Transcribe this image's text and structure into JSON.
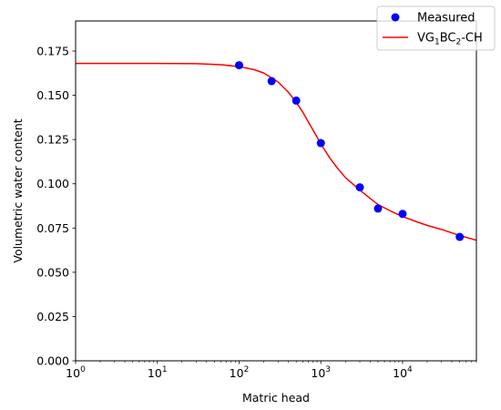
{
  "chart_data": {
    "type": "scatter",
    "xlabel": "Matric head",
    "ylabel": "Volumetric water content",
    "xscale": "log",
    "xlim": [
      1,
      80000
    ],
    "ylim": [
      0,
      0.192
    ],
    "grid": false,
    "legend_placement": "top-right",
    "x_ticks": [
      {
        "value": 1,
        "base": "10",
        "exp": "0"
      },
      {
        "value": 10,
        "base": "10",
        "exp": "1"
      },
      {
        "value": 100,
        "base": "10",
        "exp": "2"
      },
      {
        "value": 1000,
        "base": "10",
        "exp": "3"
      },
      {
        "value": 10000,
        "base": "10",
        "exp": "4"
      }
    ],
    "y_ticks": [
      {
        "value": 0.0,
        "label": "0.000"
      },
      {
        "value": 0.025,
        "label": "0.025"
      },
      {
        "value": 0.05,
        "label": "0.050"
      },
      {
        "value": 0.075,
        "label": "0.075"
      },
      {
        "value": 0.1,
        "label": "0.100"
      },
      {
        "value": 0.125,
        "label": "0.125"
      },
      {
        "value": 0.15,
        "label": "0.150"
      },
      {
        "value": 0.175,
        "label": "0.175"
      }
    ],
    "series": [
      {
        "name": "Measured",
        "kind": "scatter",
        "color": "#0000ff",
        "x": [
          100,
          250,
          500,
          1000,
          3000,
          5000,
          10000,
          50000
        ],
        "y": [
          0.167,
          0.158,
          0.147,
          0.123,
          0.098,
          0.086,
          0.083,
          0.07
        ]
      },
      {
        "name_parts": [
          "VG",
          "1",
          "BC",
          "2",
          "-CH"
        ],
        "kind": "line",
        "color": "#ff0000",
        "x": [
          1,
          10,
          30,
          60,
          100,
          150,
          200,
          300,
          400,
          500,
          600,
          800,
          1000,
          1300,
          1600,
          2000,
          3000,
          4000,
          5000,
          7000,
          10000,
          15000,
          20000,
          30000,
          50000,
          80000
        ],
        "y": [
          0.168,
          0.168,
          0.1679,
          0.1673,
          0.1662,
          0.1646,
          0.1626,
          0.1575,
          0.1518,
          0.1461,
          0.1405,
          0.1305,
          0.1225,
          0.1143,
          0.1088,
          0.1035,
          0.0965,
          0.0918,
          0.0883,
          0.0848,
          0.0815,
          0.0785,
          0.0765,
          0.0742,
          0.0708,
          0.0681
        ]
      }
    ]
  }
}
